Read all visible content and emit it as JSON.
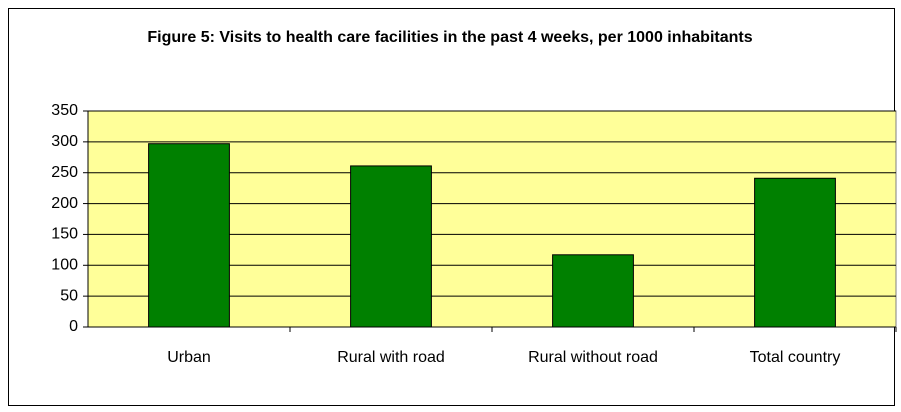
{
  "chart_data": {
    "type": "bar",
    "title": "Figure 5: Visits to health care facilities in the past 4 weeks, per 1000 inhabitants",
    "categories": [
      "Urban",
      "Rural with road",
      "Rural without road",
      "Total country"
    ],
    "values": [
      297,
      261,
      117,
      241
    ],
    "color": "#008000",
    "ylim": [
      0,
      350
    ],
    "yticks": [
      0,
      50,
      100,
      150,
      200,
      250,
      300,
      350
    ],
    "grid": true
  }
}
